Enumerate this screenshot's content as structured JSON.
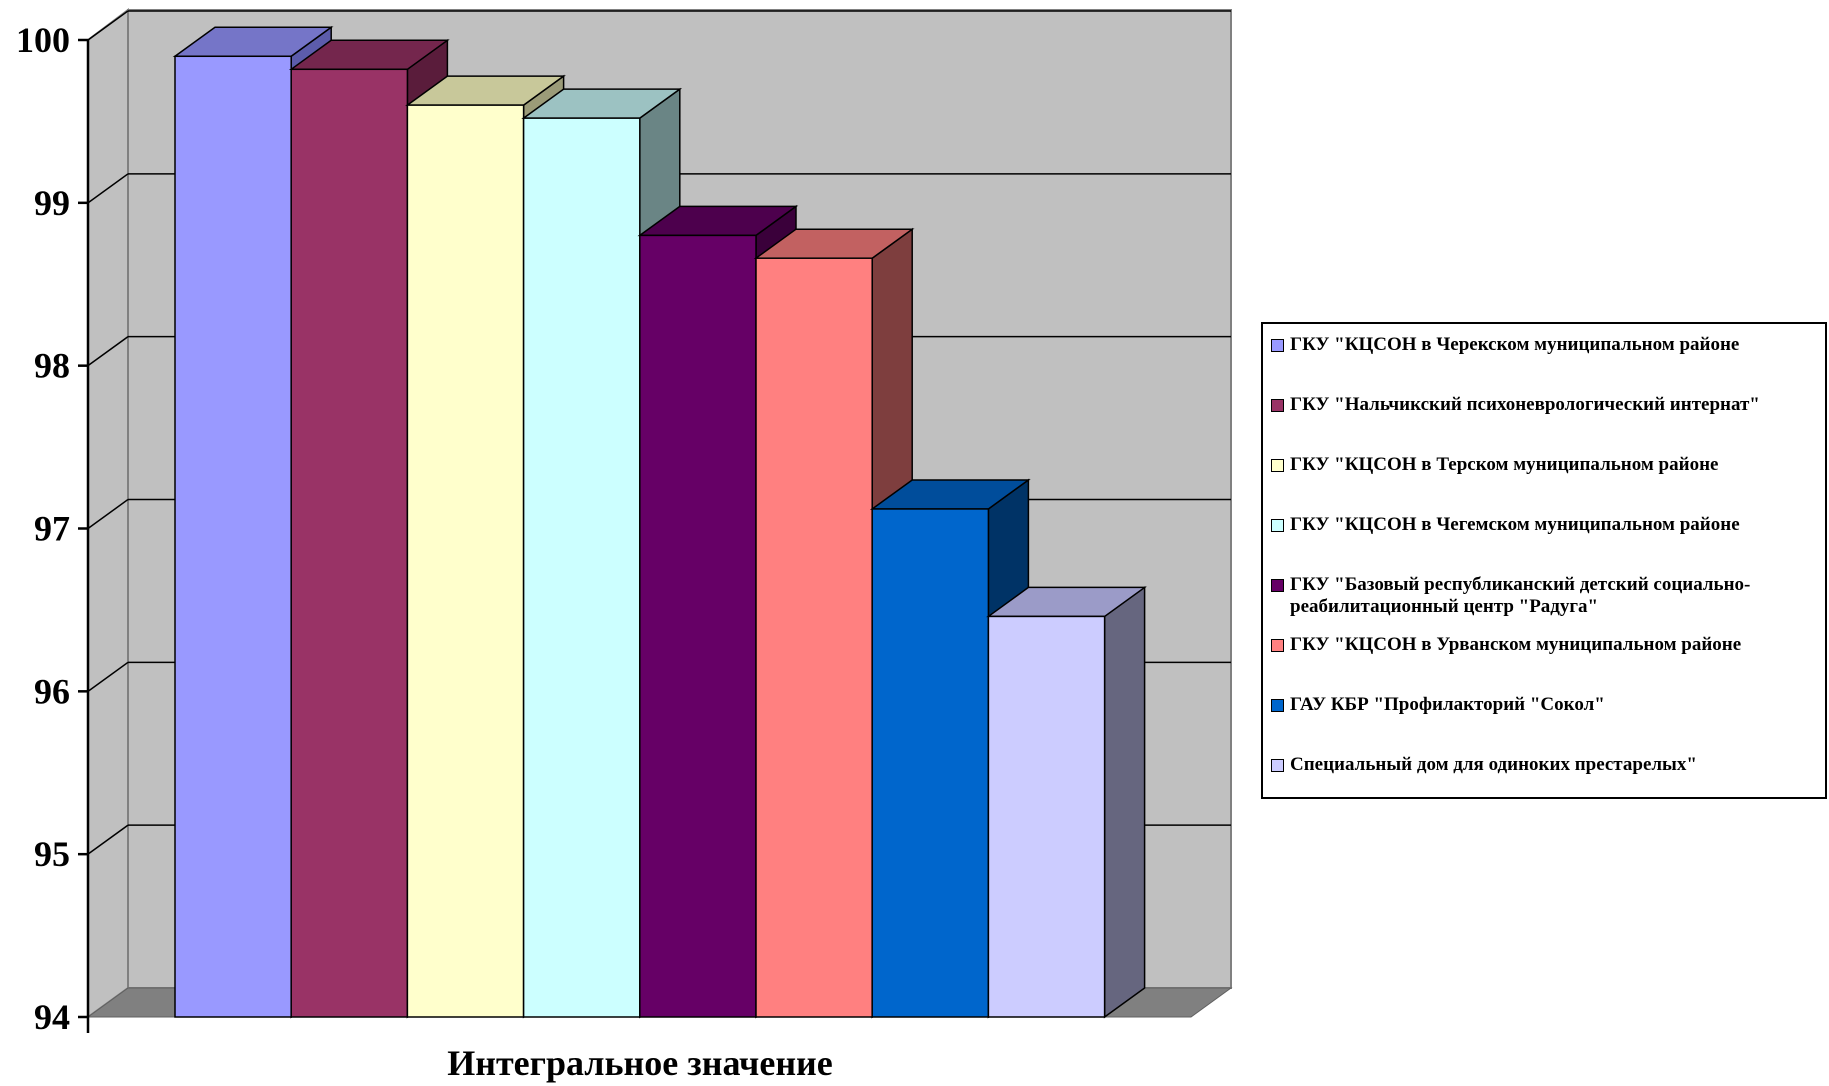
{
  "chart_data": {
    "type": "bar",
    "title": "",
    "xlabel": "Интегральное значение",
    "ylabel": "",
    "ylim": [
      94,
      100
    ],
    "yticks": [
      "94",
      "95",
      "96",
      "97",
      "98",
      "99",
      "100"
    ],
    "grid": true,
    "legend_position": "right",
    "categories": [
      "Интегральное значение"
    ],
    "series": [
      {
        "name": "ГКУ \"КЦСОН в Черекском муниципальном районе",
        "value": 99.9,
        "color": "#9999ff",
        "top": "#7575c8",
        "side": "#5c5cab"
      },
      {
        "name": "ГКУ \"Нальчикский психоневрологический интернат\"",
        "value": 99.82,
        "color": "#993366",
        "top": "#74264d",
        "side": "#5a1c3b"
      },
      {
        "name": "ГКУ \"КЦСОН в Терском муниципальном районе",
        "value": 99.6,
        "color": "#ffffcc",
        "top": "#c8c89a",
        "side": "#9b9b78"
      },
      {
        "name": "ГКУ \"КЦСОН в Чегемском муниципальном районе",
        "value": 99.52,
        "color": "#ccffff",
        "top": "#9cc2c2",
        "side": "#6a8585"
      },
      {
        "name": "ГКУ \"Базовый республиканский детский социально-реабилитационный центр \"Радуга\"",
        "value": 98.8,
        "color": "#660066",
        "top": "#4d004d",
        "side": "#3a003a"
      },
      {
        "name": "ГКУ \"КЦСОН в Урванском муниципальном районе",
        "value": 98.66,
        "color": "#ff8080",
        "top": "#c26161",
        "side": "#7e3e3e"
      },
      {
        "name": "ГАУ КБР \"Профилакторий \"Сокол\"",
        "value": 97.12,
        "color": "#0066cc",
        "top": "#004d9b",
        "side": "#003366"
      },
      {
        "name": "Специальный дом для одиноких престарелых\"",
        "value": 96.46,
        "color": "#ccccff",
        "top": "#9b9bc8",
        "side": "#66667f"
      }
    ]
  }
}
